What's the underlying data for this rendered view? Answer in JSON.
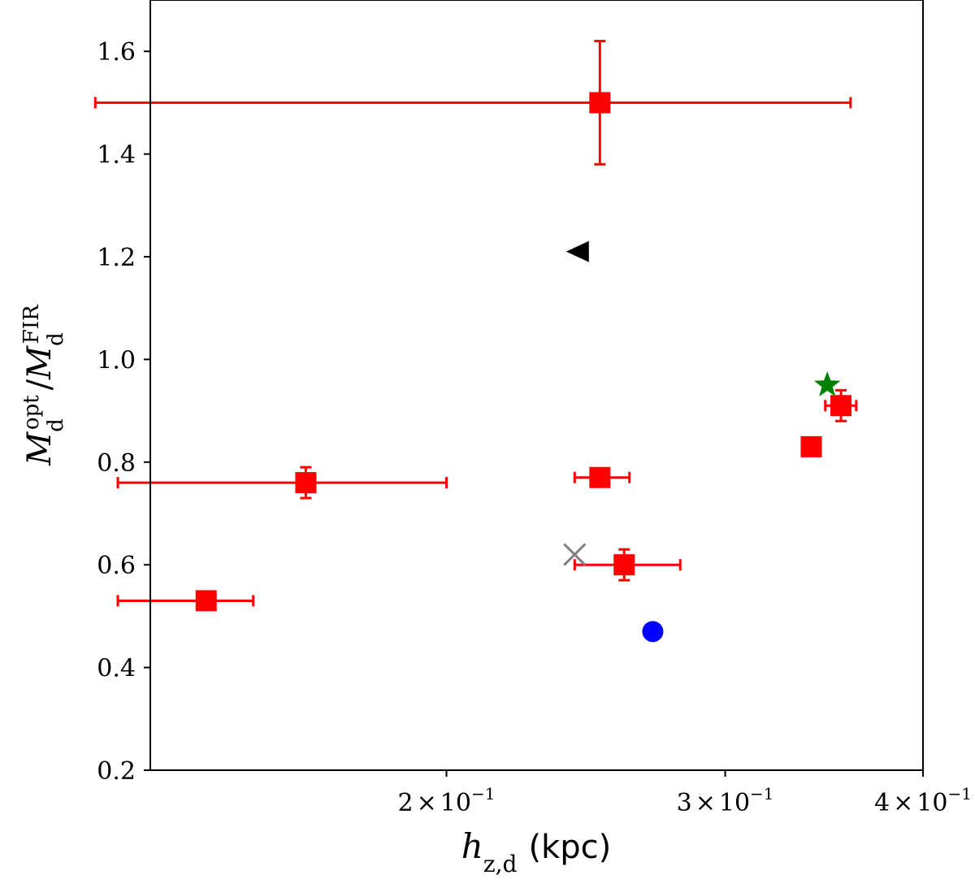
{
  "chart_data": {
    "type": "scatter",
    "x_scale": "log",
    "xlim": [
      0.13,
      0.4
    ],
    "ylim": [
      0.2,
      1.7
    ],
    "xlabel": {
      "symbol": "h",
      "subscript": "z,d",
      "unit": "(kpc)"
    },
    "ylabel": {
      "numerator": "M",
      "num_sub": "d",
      "num_sup": "opt",
      "separator": "/",
      "denominator": "M",
      "den_sub": "d",
      "den_sup": "FIR"
    },
    "x_ticks": [
      {
        "value": 0.2,
        "mantissa": "2",
        "times": "×",
        "base": "10",
        "exponent": "−1"
      },
      {
        "value": 0.3,
        "mantissa": "3",
        "times": "×",
        "base": "10",
        "exponent": "−1"
      },
      {
        "value": 0.4,
        "mantissa": "4",
        "times": "×",
        "base": "10",
        "exponent": "−1"
      }
    ],
    "y_ticks": [
      {
        "value": 0.2,
        "label": "0.2"
      },
      {
        "value": 0.4,
        "label": "0.4"
      },
      {
        "value": 0.6,
        "label": "0.6"
      },
      {
        "value": 0.8,
        "label": "0.8"
      },
      {
        "value": 1.0,
        "label": "1.0"
      },
      {
        "value": 1.2,
        "label": "1.2"
      },
      {
        "value": 1.4,
        "label": "1.4"
      },
      {
        "value": 1.6,
        "label": "1.6"
      }
    ],
    "series": [
      {
        "name": "red squares with error bars",
        "marker": "square",
        "color": "#ff0000",
        "points": [
          {
            "x": 0.25,
            "y": 1.5,
            "xerr": [
              0.12,
              0.36
            ],
            "yerr": [
              1.38,
              1.62
            ]
          },
          {
            "x": 0.163,
            "y": 0.76,
            "xerr": [
              0.124,
              0.2
            ],
            "yerr": [
              0.73,
              0.79
            ]
          },
          {
            "x": 0.141,
            "y": 0.53,
            "xerr": [
              0.124,
              0.151
            ],
            "yerr": null
          },
          {
            "x": 0.25,
            "y": 0.77,
            "xerr": [
              0.241,
              0.261
            ],
            "yerr": null
          },
          {
            "x": 0.259,
            "y": 0.6,
            "xerr": [
              0.241,
              0.281
            ],
            "yerr": [
              0.57,
              0.63
            ]
          },
          {
            "x": 0.34,
            "y": 0.83,
            "xerr": null,
            "yerr": null
          },
          {
            "x": 0.355,
            "y": 0.91,
            "xerr": [
              0.347,
              0.363
            ],
            "yerr": [
              0.88,
              0.94
            ]
          }
        ]
      },
      {
        "name": "black triangle",
        "marker": "triangle-left",
        "color": "#000000",
        "points": [
          {
            "x": 0.242,
            "y": 1.21
          }
        ]
      },
      {
        "name": "green star",
        "marker": "star",
        "color": "#008000",
        "points": [
          {
            "x": 0.348,
            "y": 0.95
          }
        ]
      },
      {
        "name": "gray cross",
        "marker": "x",
        "color": "#808080",
        "points": [
          {
            "x": 0.241,
            "y": 0.62
          }
        ]
      },
      {
        "name": "blue circle",
        "marker": "circle",
        "color": "#0000ff",
        "points": [
          {
            "x": 0.27,
            "y": 0.47
          }
        ]
      }
    ]
  }
}
